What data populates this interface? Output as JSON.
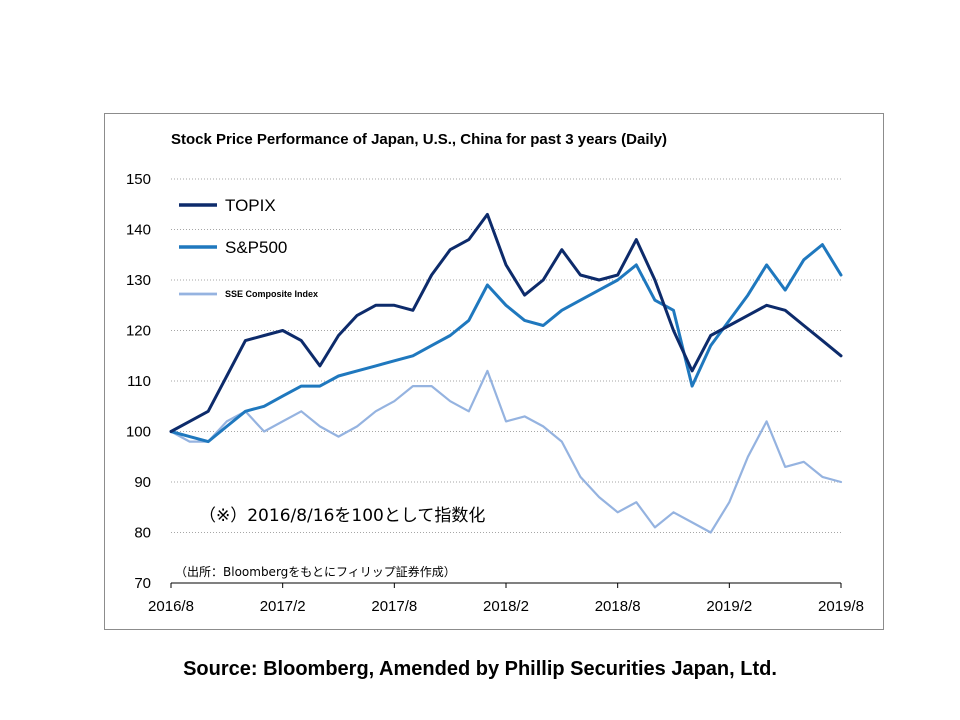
{
  "source_caption": "Source: Bloomberg, Amended by Phillip Securities Japan, Ltd.",
  "chart_data": {
    "type": "line",
    "title": "Stock Price Performance of Japan, U.S., China for past 3 years (Daily)",
    "xlabel": "",
    "ylabel": "",
    "ylim": [
      70,
      150
    ],
    "yticks": [
      150,
      140,
      130,
      120,
      110,
      100,
      90,
      80,
      70
    ],
    "xtick_labels": [
      "2016/8",
      "2017/2",
      "2017/8",
      "2018/2",
      "2018/8",
      "2019/2",
      "2019/8"
    ],
    "grid": "horizontal dotted",
    "legend_position": "top-left",
    "annotations": [
      "（※）2016/8/16を100として指数化",
      "（出所：Bloombergをもとにフィリップ証券作成）"
    ],
    "x": [
      "2016/8",
      "2016/9",
      "2016/10",
      "2016/11",
      "2016/12",
      "2017/1",
      "2017/2",
      "2017/3",
      "2017/4",
      "2017/5",
      "2017/6",
      "2017/7",
      "2017/8",
      "2017/9",
      "2017/10",
      "2017/11",
      "2017/12",
      "2018/1",
      "2018/2",
      "2018/3",
      "2018/4",
      "2018/5",
      "2018/6",
      "2018/7",
      "2018/8",
      "2018/9",
      "2018/10",
      "2018/11",
      "2018/12",
      "2019/1",
      "2019/2",
      "2019/3",
      "2019/4",
      "2019/5",
      "2019/6",
      "2019/7",
      "2019/8"
    ],
    "series": [
      {
        "name": "TOPIX",
        "color": "#0d2b6b",
        "width": 3,
        "values": [
          100,
          102,
          104,
          111,
          118,
          119,
          120,
          118,
          113,
          119,
          123,
          125,
          125,
          124,
          131,
          136,
          138,
          143,
          133,
          127,
          130,
          136,
          131,
          130,
          131,
          138,
          130,
          120,
          112,
          119,
          121,
          123,
          125,
          124,
          121,
          118,
          115
        ]
      },
      {
        "name": "S&P500",
        "color": "#1f78be",
        "width": 3,
        "values": [
          100,
          99,
          98,
          101,
          104,
          105,
          107,
          109,
          109,
          111,
          112,
          113,
          114,
          115,
          117,
          119,
          122,
          129,
          125,
          122,
          121,
          124,
          126,
          128,
          130,
          133,
          126,
          124,
          109,
          117,
          122,
          127,
          133,
          128,
          134,
          137,
          131
        ]
      },
      {
        "name": "SSE Composite Index",
        "color": "#95b3e0",
        "width": 2.2,
        "values": [
          100,
          98,
          98,
          102,
          104,
          100,
          102,
          104,
          101,
          99,
          101,
          104,
          106,
          109,
          109,
          106,
          104,
          112,
          102,
          103,
          101,
          98,
          91,
          87,
          84,
          86,
          81,
          84,
          82,
          80,
          86,
          95,
          102,
          93,
          94,
          91,
          90
        ]
      }
    ]
  }
}
